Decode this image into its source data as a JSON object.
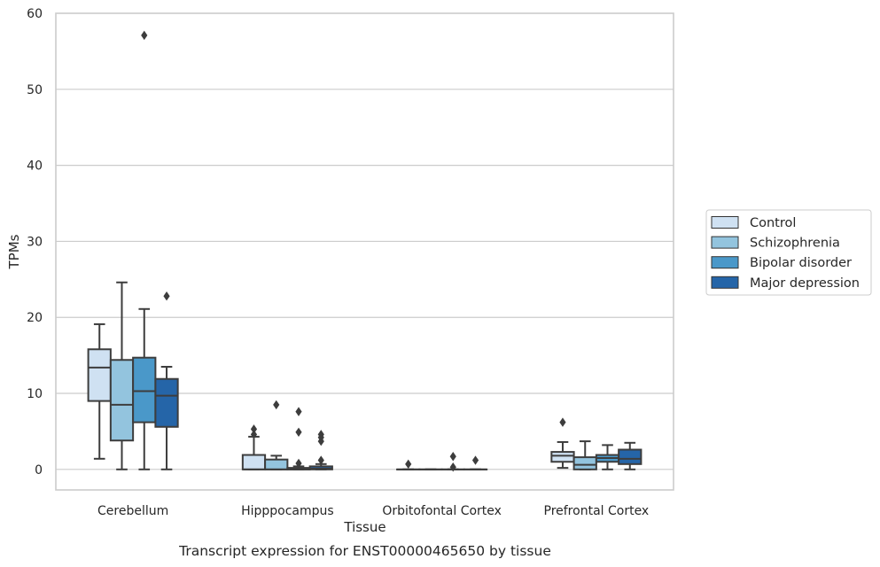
{
  "chart_data": {
    "type": "box",
    "xlabel": "Tissue",
    "ylabel": "TPMs",
    "caption": "Transcript expression for ENST00000465650 by tissue",
    "ylim": [
      -2.7,
      60
    ],
    "yticks": [
      0,
      10,
      20,
      30,
      40,
      50,
      60
    ],
    "grid": "horizontal",
    "legend_position": "outside-right",
    "categories": [
      "Cerebellum",
      "Hipppocampus",
      "Orbitofontal Cortex",
      "Prefrontal Cortex"
    ],
    "series": [
      {
        "name": "Control",
        "color": "#cfe1f2",
        "boxes": [
          {
            "whislo": 1.4,
            "q1": 9.0,
            "med": 13.4,
            "q3": 15.8,
            "whishi": 19.1,
            "fliers": []
          },
          {
            "whislo": 0.0,
            "q1": 0.0,
            "med": 0.0,
            "q3": 1.9,
            "whishi": 4.3,
            "fliers": [
              4.6,
              5.3
            ]
          },
          {
            "whislo": 0.0,
            "q1": 0.0,
            "med": 0.0,
            "q3": 0.0,
            "whishi": 0.0,
            "fliers": [
              0.7
            ]
          },
          {
            "whislo": 0.2,
            "q1": 1.0,
            "med": 1.8,
            "q3": 2.3,
            "whishi": 3.6,
            "fliers": [
              6.2
            ]
          }
        ]
      },
      {
        "name": "Schizophrenia",
        "color": "#93c4de",
        "boxes": [
          {
            "whislo": 0.0,
            "q1": 3.8,
            "med": 8.5,
            "q3": 14.4,
            "whishi": 24.6,
            "fliers": []
          },
          {
            "whislo": 0.0,
            "q1": 0.0,
            "med": 0.0,
            "q3": 1.3,
            "whishi": 1.8,
            "fliers": [
              8.5
            ]
          },
          {
            "whislo": 0.0,
            "q1": 0.0,
            "med": 0.0,
            "q3": 0.0,
            "whishi": 0.0,
            "fliers": []
          },
          {
            "whislo": 0.0,
            "q1": 0.0,
            "med": 0.6,
            "q3": 1.6,
            "whishi": 3.7,
            "fliers": []
          }
        ]
      },
      {
        "name": "Bipolar disorder",
        "color": "#4a98c9",
        "boxes": [
          {
            "whislo": 0.0,
            "q1": 6.2,
            "med": 10.3,
            "q3": 14.7,
            "whishi": 21.1,
            "fliers": [
              57.1
            ]
          },
          {
            "whislo": 0.0,
            "q1": 0.0,
            "med": 0.0,
            "q3": 0.2,
            "whishi": 0.4,
            "fliers": [
              7.6,
              4.9,
              0.8
            ]
          },
          {
            "whislo": 0.0,
            "q1": 0.0,
            "med": 0.0,
            "q3": 0.0,
            "whishi": 0.0,
            "fliers": [
              1.7,
              0.3
            ]
          },
          {
            "whislo": 0.0,
            "q1": 1.0,
            "med": 1.5,
            "q3": 1.9,
            "whishi": 3.2,
            "fliers": []
          }
        ]
      },
      {
        "name": "Major depression",
        "color": "#2565a8",
        "boxes": [
          {
            "whislo": 0.0,
            "q1": 5.6,
            "med": 9.7,
            "q3": 11.9,
            "whishi": 13.5,
            "fliers": [
              22.8
            ]
          },
          {
            "whislo": 0.0,
            "q1": 0.0,
            "med": 0.1,
            "q3": 0.4,
            "whishi": 0.7,
            "fliers": [
              4.6,
              4.2,
              3.7,
              1.2
            ]
          },
          {
            "whislo": 0.0,
            "q1": 0.0,
            "med": 0.0,
            "q3": 0.0,
            "whishi": 0.0,
            "fliers": [
              1.2
            ]
          },
          {
            "whislo": 0.0,
            "q1": 0.7,
            "med": 1.4,
            "q3": 2.6,
            "whishi": 3.5,
            "fliers": []
          }
        ]
      }
    ]
  }
}
